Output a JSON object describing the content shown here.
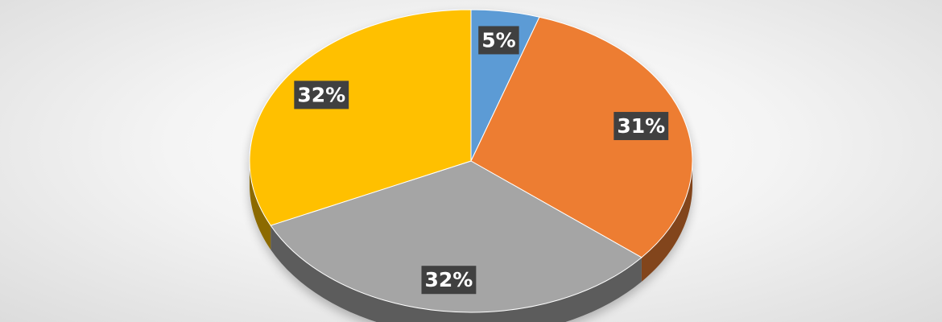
{
  "chart_data": {
    "type": "pie",
    "values": [
      5,
      31,
      32,
      32
    ],
    "value_labels": [
      "5%",
      "31%",
      "32%",
      "32%"
    ],
    "colors": [
      "#5b9bd5",
      "#ed7d31",
      "#a5a5a5",
      "#ffc000"
    ]
  }
}
